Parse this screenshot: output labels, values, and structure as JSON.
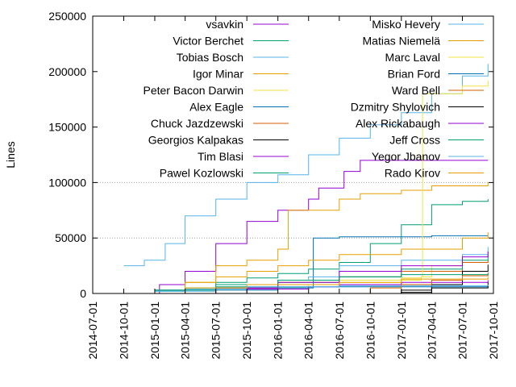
{
  "chart_data": {
    "type": "line",
    "ylabel": "Lines",
    "xlabel": "",
    "ylim": [
      0,
      250000
    ],
    "xlim": [
      "2014-07-01",
      "2017-10-01"
    ],
    "yticks": [
      0,
      50000,
      100000,
      150000,
      200000,
      250000
    ],
    "ytick_labels": [
      "0",
      "50000",
      "100000",
      "150000",
      "200000",
      "250000"
    ],
    "xticks": [
      "2014-07-01",
      "2014-10-01",
      "2015-01-01",
      "2015-04-01",
      "2015-07-01",
      "2015-10-01",
      "2016-01-01",
      "2016-04-01",
      "2016-07-01",
      "2016-10-01",
      "2017-01-01",
      "2017-04-01",
      "2017-07-01",
      "2017-10-01"
    ],
    "grid": "horizontal dotted at 50000 and 100000",
    "legend_placement": "top, two columns",
    "series": [
      {
        "name": "vsavkin",
        "color": "#9400d3",
        "points": [
          [
            "2014-10-01",
            0
          ],
          [
            "2015-01-15",
            8000
          ],
          [
            "2015-04-01",
            20000
          ],
          [
            "2015-07-01",
            45000
          ],
          [
            "2015-10-01",
            65000
          ],
          [
            "2016-01-01",
            75000
          ],
          [
            "2016-04-01",
            85000
          ],
          [
            "2016-05-01",
            95000
          ],
          [
            "2016-07-15",
            110000
          ],
          [
            "2016-09-01",
            120000
          ],
          [
            "2017-09-15",
            120000
          ]
        ]
      },
      {
        "name": "Victor Berchet",
        "color": "#009e73",
        "points": [
          [
            "2014-10-01",
            0
          ],
          [
            "2015-01-01",
            2000
          ],
          [
            "2015-04-01",
            5000
          ],
          [
            "2015-07-01",
            10000
          ],
          [
            "2015-10-01",
            14000
          ],
          [
            "2016-01-01",
            18000
          ],
          [
            "2016-04-01",
            22000
          ],
          [
            "2016-07-01",
            28000
          ],
          [
            "2016-10-01",
            45000
          ],
          [
            "2017-01-01",
            62000
          ],
          [
            "2017-04-01",
            80000
          ],
          [
            "2017-07-01",
            83000
          ],
          [
            "2017-09-15",
            85000
          ]
        ]
      },
      {
        "name": "Tobias Bosch",
        "color": "#56b4e9",
        "points": [
          [
            "2014-10-01",
            25000
          ],
          [
            "2014-12-01",
            30000
          ],
          [
            "2015-02-01",
            45000
          ],
          [
            "2015-04-01",
            70000
          ],
          [
            "2015-07-01",
            85000
          ],
          [
            "2015-10-01",
            100000
          ],
          [
            "2016-01-01",
            107000
          ],
          [
            "2016-04-01",
            125000
          ],
          [
            "2016-07-01",
            140000
          ],
          [
            "2016-10-01",
            152000
          ],
          [
            "2017-01-01",
            163000
          ],
          [
            "2017-04-01",
            180000
          ],
          [
            "2017-07-01",
            196000
          ],
          [
            "2017-09-15",
            207000
          ]
        ]
      },
      {
        "name": "Igor Minar",
        "color": "#e69f00",
        "points": [
          [
            "2014-11-01",
            0
          ],
          [
            "2015-04-01",
            10000
          ],
          [
            "2015-07-01",
            25000
          ],
          [
            "2015-10-01",
            30000
          ],
          [
            "2016-01-01",
            40000
          ],
          [
            "2016-02-01",
            75000
          ],
          [
            "2016-07-01",
            85000
          ],
          [
            "2016-09-01",
            90000
          ],
          [
            "2017-01-01",
            93000
          ],
          [
            "2017-04-01",
            97000
          ],
          [
            "2017-09-15",
            100000
          ]
        ]
      },
      {
        "name": "Peter Bacon Darwin",
        "color": "#f0e442",
        "points": [
          [
            "2015-02-01",
            0
          ],
          [
            "2015-10-01",
            5000
          ],
          [
            "2016-04-01",
            8000
          ],
          [
            "2016-07-01",
            10000
          ],
          [
            "2017-01-01",
            12000
          ],
          [
            "2017-03-01",
            15000
          ],
          [
            "2017-04-01",
            25000
          ],
          [
            "2017-07-01",
            28000
          ],
          [
            "2017-09-15",
            30000
          ]
        ]
      },
      {
        "name": "Alex Eagle",
        "color": "#0072b2",
        "points": [
          [
            "2015-01-01",
            0
          ],
          [
            "2015-07-01",
            3000
          ],
          [
            "2016-01-01",
            5000
          ],
          [
            "2016-04-01",
            5000
          ],
          [
            "2016-04-15",
            50000
          ],
          [
            "2016-07-01",
            51000
          ],
          [
            "2017-04-01",
            52000
          ],
          [
            "2017-09-15",
            52000
          ]
        ]
      },
      {
        "name": "Chuck Jazdzewski",
        "color": "#d55e00",
        "points": [
          [
            "2015-03-01",
            0
          ],
          [
            "2015-07-01",
            5000
          ],
          [
            "2016-01-01",
            10000
          ],
          [
            "2016-07-01",
            15000
          ],
          [
            "2017-01-01",
            20000
          ],
          [
            "2017-07-01",
            28000
          ],
          [
            "2017-09-15",
            30000
          ]
        ]
      },
      {
        "name": "Georgios Kalpakas",
        "color": "#000000",
        "points": [
          [
            "2016-10-15",
            0
          ],
          [
            "2017-01-01",
            3000
          ],
          [
            "2017-04-01",
            8000
          ],
          [
            "2017-07-01",
            20000
          ],
          [
            "2017-09-15",
            26000
          ]
        ]
      },
      {
        "name": "Tim Blasi",
        "color": "#9400d3",
        "points": [
          [
            "2015-06-01",
            0
          ],
          [
            "2015-10-01",
            4000
          ],
          [
            "2016-04-01",
            6000
          ],
          [
            "2016-07-01",
            8000
          ],
          [
            "2017-01-01",
            10000
          ],
          [
            "2017-09-15",
            12000
          ]
        ]
      },
      {
        "name": "Pawel Kozlowski",
        "color": "#009e73",
        "points": [
          [
            "2014-10-01",
            0
          ],
          [
            "2015-01-01",
            3000
          ],
          [
            "2015-07-01",
            6000
          ],
          [
            "2016-01-01",
            10000
          ],
          [
            "2016-07-01",
            15000
          ],
          [
            "2017-01-01",
            22000
          ],
          [
            "2017-07-01",
            30000
          ],
          [
            "2017-09-15",
            35000
          ]
        ]
      },
      {
        "name": "Misko Hevery",
        "color": "#56b4e9",
        "points": [
          [
            "2014-10-01",
            0
          ],
          [
            "2015-01-01",
            2000
          ],
          [
            "2015-07-01",
            8000
          ],
          [
            "2016-01-01",
            12000
          ],
          [
            "2016-04-01",
            15000
          ],
          [
            "2016-07-01",
            25000
          ],
          [
            "2017-01-01",
            30000
          ],
          [
            "2017-07-01",
            35000
          ],
          [
            "2017-09-15",
            42000
          ]
        ]
      },
      {
        "name": "Matias Niemelä",
        "color": "#e69f00",
        "points": [
          [
            "2014-10-01",
            0
          ],
          [
            "2015-04-01",
            10000
          ],
          [
            "2015-07-01",
            15000
          ],
          [
            "2015-10-01",
            20000
          ],
          [
            "2016-01-01",
            25000
          ],
          [
            "2016-04-01",
            30000
          ],
          [
            "2016-07-01",
            35000
          ],
          [
            "2017-01-01",
            40000
          ],
          [
            "2017-07-01",
            50000
          ],
          [
            "2017-09-15",
            55000
          ]
        ]
      },
      {
        "name": "Marc Laval",
        "color": "#f0e442",
        "points": [
          [
            "2015-01-01",
            0
          ],
          [
            "2015-07-01",
            8000
          ],
          [
            "2016-01-01",
            10000
          ],
          [
            "2016-07-01",
            12000
          ],
          [
            "2017-01-01",
            14000
          ],
          [
            "2017-03-01",
            15000
          ],
          [
            "2017-03-05",
            180000
          ],
          [
            "2017-07-01",
            187000
          ],
          [
            "2017-09-15",
            192000
          ]
        ]
      },
      {
        "name": "Brian Ford",
        "color": "#0072b2",
        "points": [
          [
            "2014-10-01",
            0
          ],
          [
            "2015-01-01",
            3000
          ],
          [
            "2015-07-01",
            5000
          ],
          [
            "2016-01-01",
            6000
          ],
          [
            "2017-09-15",
            7000
          ]
        ]
      },
      {
        "name": "Ward Bell",
        "color": "#d55e00",
        "points": [
          [
            "2016-06-01",
            0
          ],
          [
            "2016-10-01",
            5000
          ],
          [
            "2017-01-01",
            8000
          ],
          [
            "2017-04-01",
            12000
          ],
          [
            "2017-07-01",
            16000
          ],
          [
            "2017-09-15",
            19000
          ]
        ]
      },
      {
        "name": "Dzmitry Shylovich",
        "color": "#000000",
        "points": [
          [
            "2016-12-01",
            0
          ],
          [
            "2017-01-01",
            1000
          ],
          [
            "2017-04-01",
            5000
          ],
          [
            "2017-09-15",
            10000
          ]
        ]
      },
      {
        "name": "Alex Rickabaugh",
        "color": "#9400d3",
        "points": [
          [
            "2015-03-01",
            0
          ],
          [
            "2015-07-01",
            5000
          ],
          [
            "2016-01-01",
            10000
          ],
          [
            "2016-07-01",
            20000
          ],
          [
            "2017-01-01",
            25000
          ],
          [
            "2017-07-01",
            33000
          ],
          [
            "2017-09-15",
            38000
          ]
        ]
      },
      {
        "name": "Jeff Cross",
        "color": "#009e73",
        "points": [
          [
            "2014-10-01",
            0
          ],
          [
            "2015-01-01",
            3000
          ],
          [
            "2015-07-01",
            8000
          ],
          [
            "2016-01-01",
            12000
          ],
          [
            "2016-07-01",
            15000
          ],
          [
            "2017-01-01",
            17000
          ],
          [
            "2017-09-15",
            18000
          ]
        ]
      },
      {
        "name": "Yegor Jbanov",
        "color": "#56b4e9",
        "points": [
          [
            "2014-12-01",
            0
          ],
          [
            "2015-04-01",
            4000
          ],
          [
            "2015-10-01",
            6000
          ],
          [
            "2016-07-01",
            7000
          ],
          [
            "2017-09-15",
            8000
          ]
        ]
      },
      {
        "name": "Rado Kirov",
        "color": "#e69f00",
        "points": [
          [
            "2014-11-01",
            0
          ],
          [
            "2015-04-01",
            5000
          ],
          [
            "2015-10-01",
            8000
          ],
          [
            "2016-07-01",
            10000
          ],
          [
            "2017-01-01",
            13000
          ],
          [
            "2017-09-15",
            15000
          ]
        ]
      }
    ]
  }
}
